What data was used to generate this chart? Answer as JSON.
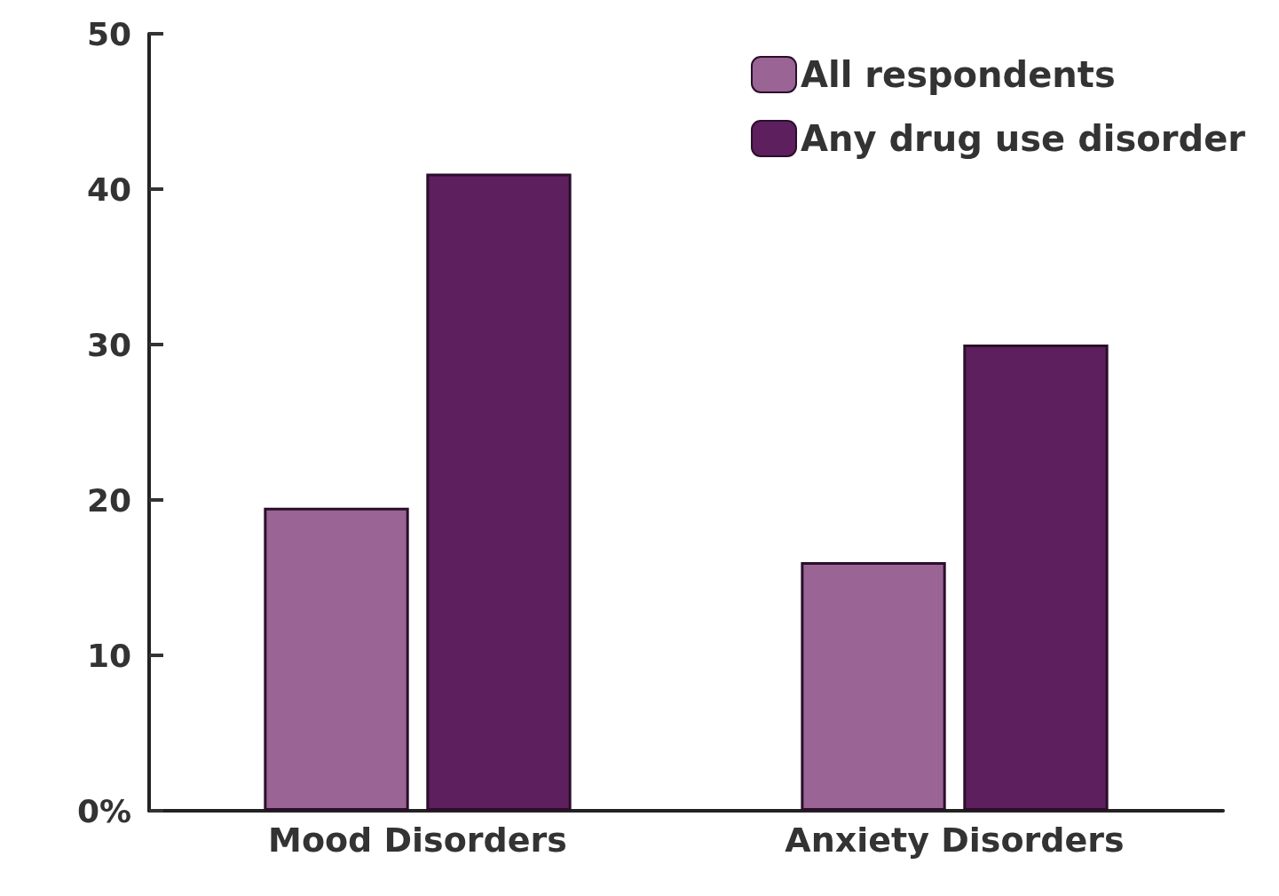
{
  "chart_data": {
    "type": "bar",
    "categories": [
      "Mood Disorders",
      "Anxiety Disorders"
    ],
    "series": [
      {
        "name": "All respondents",
        "color": "#9a6494",
        "values": [
          19.5,
          16
        ]
      },
      {
        "name": "Any drug use disorder",
        "color": "#5e1f5e",
        "values": [
          41,
          30
        ]
      }
    ],
    "ylim": [
      0,
      50
    ],
    "yticks": [
      {
        "value": 0,
        "label": "0%"
      },
      10,
      20,
      30,
      40,
      50
    ],
    "grid": false,
    "legend": "top right"
  }
}
